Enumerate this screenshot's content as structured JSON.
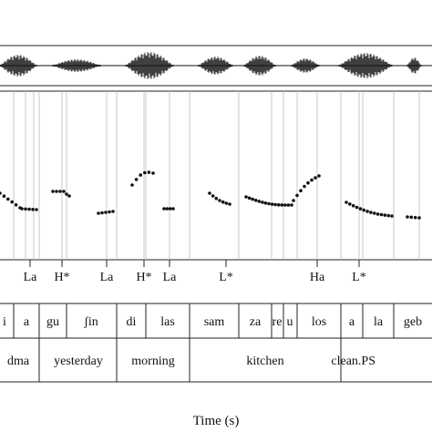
{
  "tones": [
    "La",
    "H*",
    "La",
    "H*",
    "La",
    "L*",
    "Ha",
    "L*"
  ],
  "syllables": [
    "i",
    "a",
    "gu",
    "ʃin",
    "di",
    "las",
    "sam",
    "za",
    "re",
    "u",
    "los",
    "a",
    "la",
    "geb"
  ],
  "words": [
    "dma",
    "yesterday",
    "morning",
    "kitchen",
    "clean.PS"
  ],
  "x_axis_label": "Time (s)"
}
